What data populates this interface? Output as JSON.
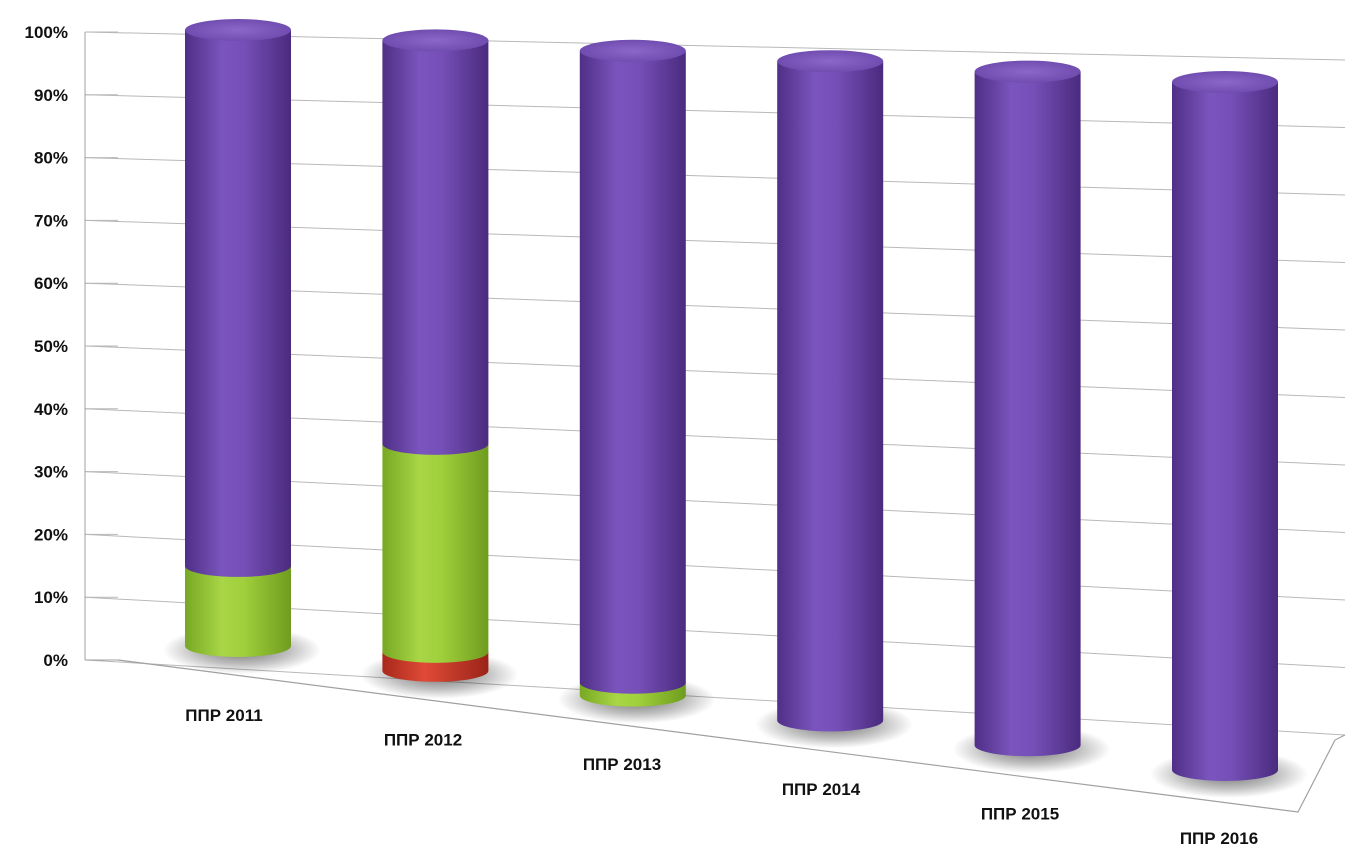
{
  "chart_data": {
    "type": "bar",
    "stacked": true,
    "style": "3d-cylinder",
    "categories": [
      "ППР 2011",
      "ППР 2012",
      "ППР 2013",
      "ППР 2014",
      "ППР 2015",
      "ППР 2016"
    ],
    "series": [
      {
        "color": "#c0392b",
        "values": [
          0,
          3,
          0,
          0,
          0,
          0
        ]
      },
      {
        "color": "#9acd32",
        "values": [
          13,
          33,
          2,
          0,
          0,
          0
        ]
      },
      {
        "color": "#6a45a8",
        "values": [
          87,
          64,
          98,
          100,
          100,
          100
        ]
      }
    ],
    "y_ticks": [
      "0%",
      "10%",
      "20%",
      "30%",
      "40%",
      "50%",
      "60%",
      "70%",
      "80%",
      "90%",
      "100%"
    ],
    "ylim": [
      0,
      100
    ],
    "grid": true,
    "legend": "none"
  }
}
